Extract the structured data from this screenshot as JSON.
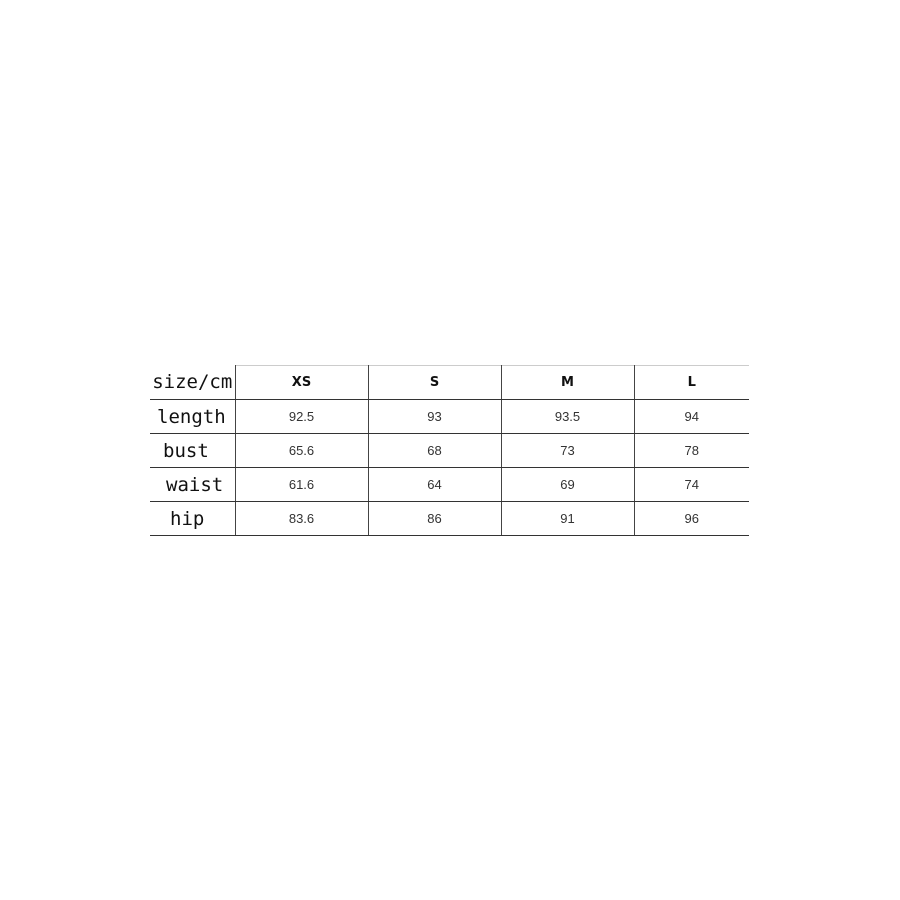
{
  "size_chart": {
    "corner_label": "size/cm",
    "sizes": [
      "XS",
      "S",
      "M",
      "L"
    ],
    "rows": [
      {
        "label": "length",
        "values": [
          "92.5",
          "93",
          "93.5",
          "94"
        ]
      },
      {
        "label": "bust",
        "values": [
          "65.6",
          "68",
          "73",
          "78"
        ]
      },
      {
        "label": "waist",
        "values": [
          "61.6",
          "64",
          "69",
          "74"
        ]
      },
      {
        "label": "hip",
        "values": [
          "83.6",
          "86",
          "91",
          "96"
        ]
      }
    ]
  }
}
